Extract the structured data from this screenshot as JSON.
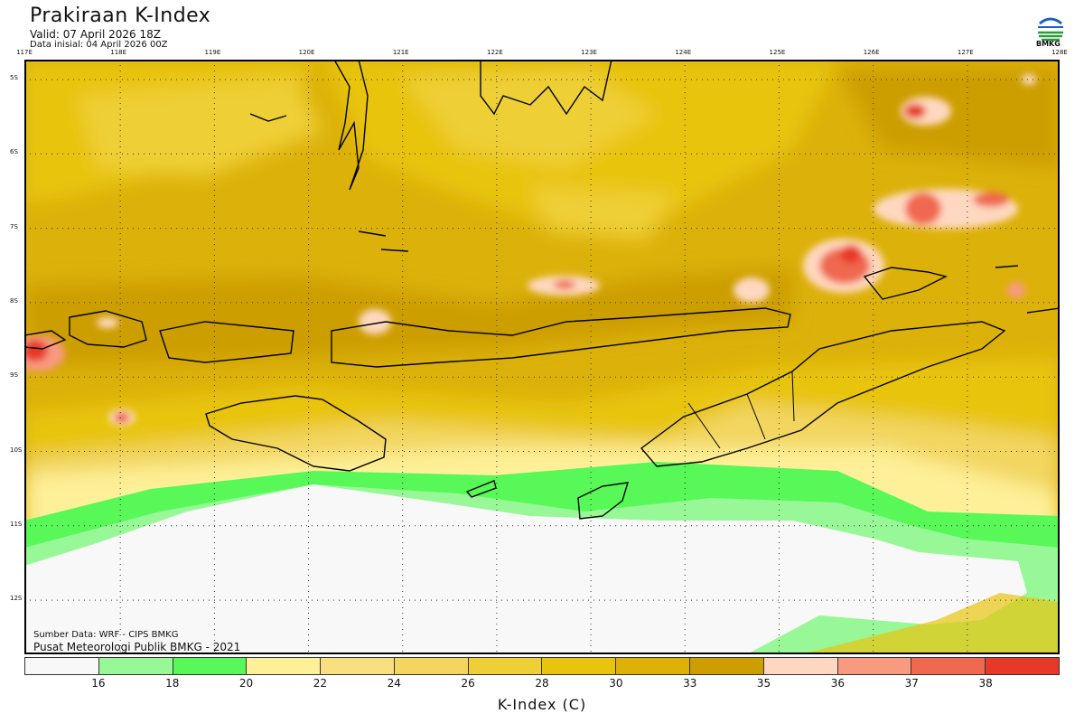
{
  "header": {
    "title": "Prakiraan K-Index",
    "valid": "Valid: 07 April 2026 18Z",
    "initial": "Data inisial: 04 April 2026 00Z"
  },
  "logo": {
    "text": "BMKG"
  },
  "axes": {
    "longitude_labels": [
      "117E",
      "118E",
      "119E",
      "120E",
      "121E",
      "122E",
      "123E",
      "124E",
      "125E",
      "126E",
      "127E",
      "128E"
    ],
    "latitude_labels": [
      "5S",
      "6S",
      "7S",
      "8S",
      "9S",
      "10S",
      "11S",
      "12S"
    ]
  },
  "footer": {
    "source": "Sumber Data: WRF - CIPS BMKG",
    "publisher": "Pusat Meteorologi Publik BMKG - 2021"
  },
  "colorbar": {
    "title": "K-Index (C)",
    "tick_labels": [
      "16",
      "18",
      "20",
      "22",
      "24",
      "26",
      "28",
      "30",
      "33",
      "35",
      "36",
      "37",
      "38"
    ],
    "colors": [
      "#f8f8f8",
      "#98f898",
      "#58f858",
      "#fef098",
      "#f8e080",
      "#f2d660",
      "#eecf35",
      "#e8c40e",
      "#dcb10a",
      "#cc9e00",
      "#fed8c0",
      "#f89a80",
      "#f06850",
      "#e83828"
    ]
  }
}
